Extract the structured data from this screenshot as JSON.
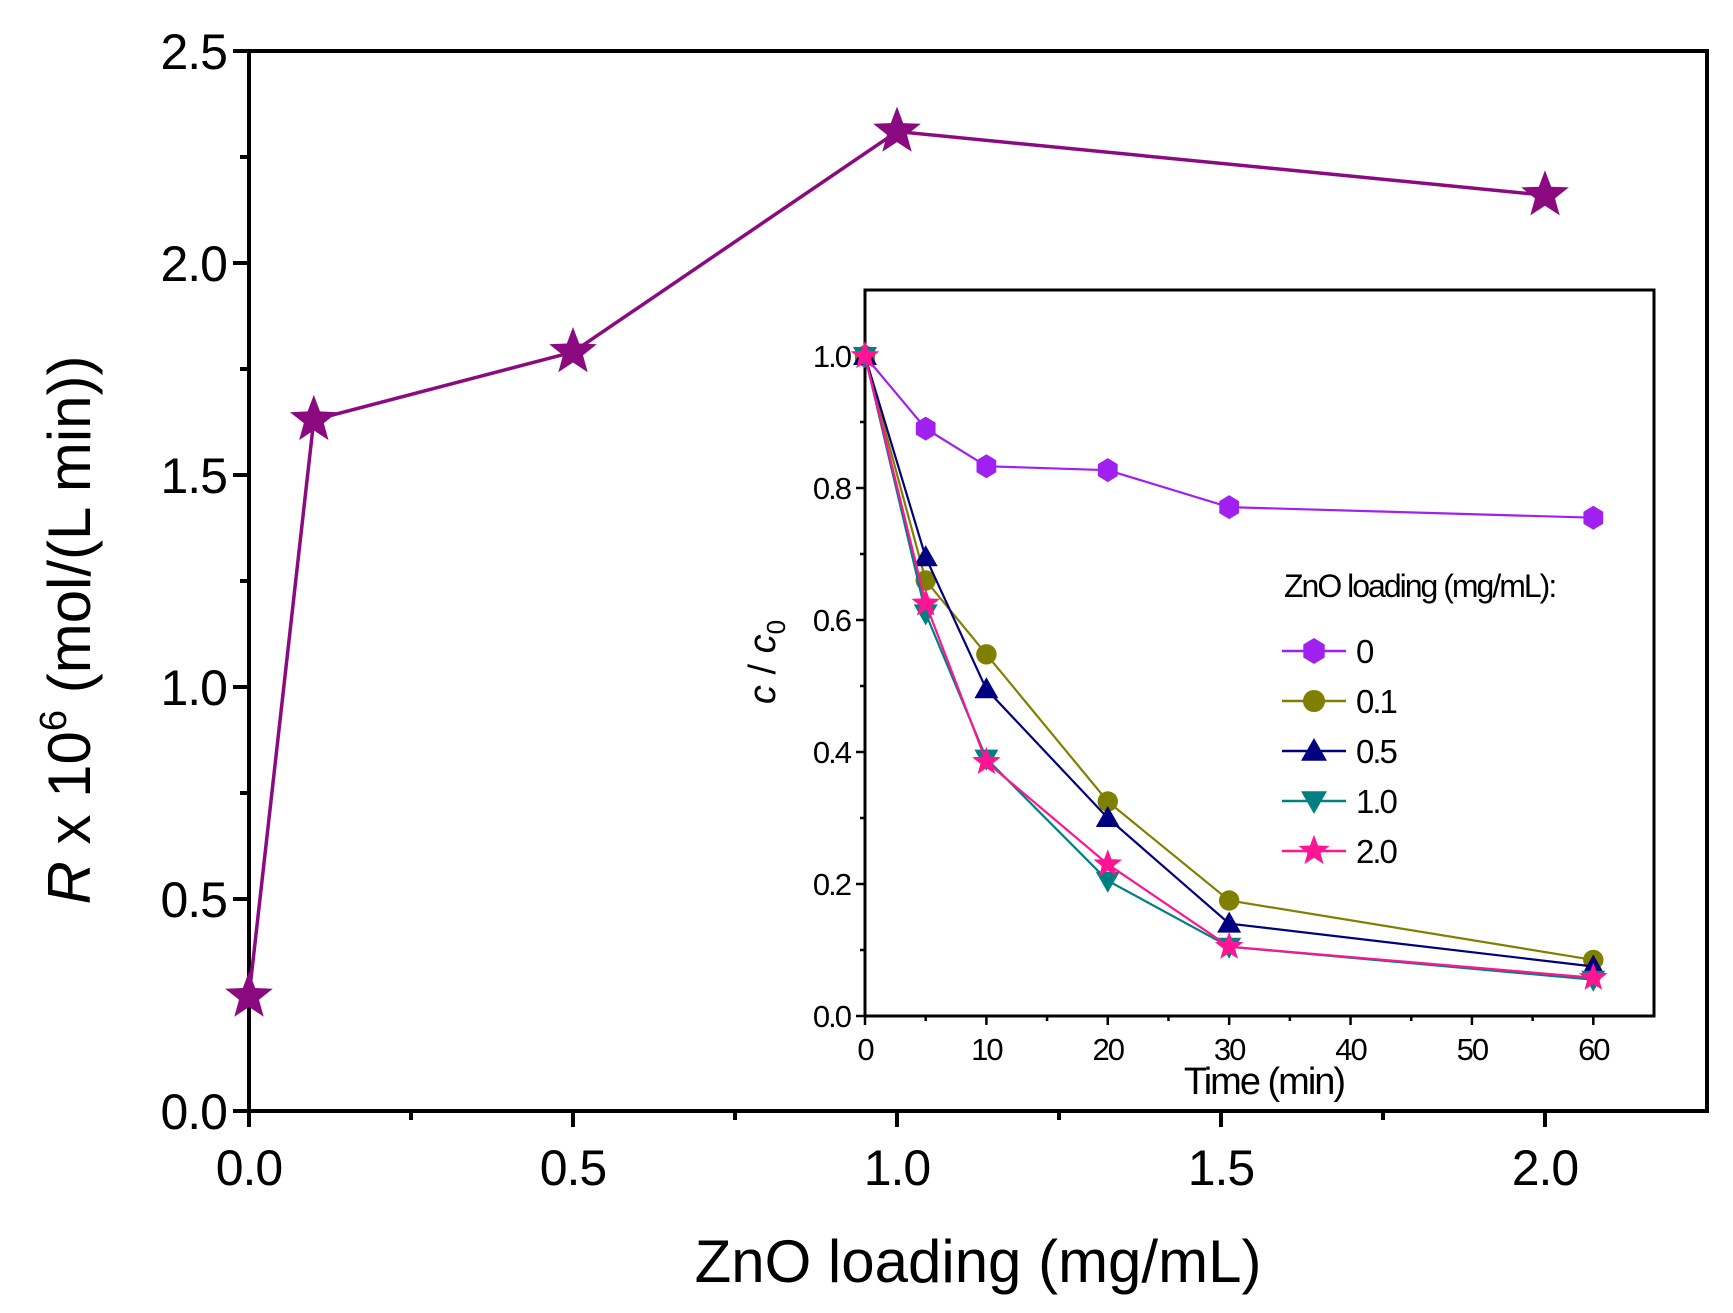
{
  "chart_data": [
    {
      "type": "line",
      "title": "",
      "xlabel": "ZnO loading (mg/mL)",
      "ylabel_parts": {
        "var": "R",
        "mid": " x 10",
        "sup": "6",
        "unit": " (mol/(L min))"
      },
      "xlim": [
        0,
        2.25
      ],
      "ylim": [
        0,
        2.5
      ],
      "xticks": [
        0.0,
        0.5,
        1.0,
        1.5,
        2.0
      ],
      "xtick_labels": [
        "0.0",
        "0.5",
        "1.0",
        "1.5",
        "2.0"
      ],
      "yticks": [
        0.0,
        0.5,
        1.0,
        1.5,
        2.0,
        2.5
      ],
      "ytick_labels": [
        "0.0",
        "0.5",
        "1.0",
        "1.5",
        "2.0",
        "2.5"
      ],
      "grid": false,
      "series": [
        {
          "name": "R",
          "marker": "star",
          "color": "#8B0A80",
          "x": [
            0,
            0.1,
            0.5,
            1.0,
            2.0
          ],
          "y": [
            0.27,
            1.63,
            1.79,
            2.31,
            2.16
          ]
        }
      ]
    },
    {
      "type": "line",
      "title": "",
      "xlabel": "Time (min)",
      "ylabel_parts": {
        "a": "c",
        "sep": " / ",
        "b": "c",
        "sub": "0"
      },
      "xlim": [
        0,
        65
      ],
      "ylim": [
        0,
        1.1
      ],
      "xticks": [
        0,
        10,
        20,
        30,
        40,
        50,
        60
      ],
      "xtick_labels": [
        "0",
        "10",
        "20",
        "30",
        "40",
        "50",
        "60"
      ],
      "yticks": [
        0.0,
        0.2,
        0.4,
        0.6,
        0.8,
        1.0
      ],
      "ytick_labels": [
        "0.0",
        "0.2",
        "0.4",
        "0.6",
        "0.8",
        "1.0"
      ],
      "grid": false,
      "legend_title": "ZnO loading (mg/mL):",
      "legend_placement": "center-right",
      "x": [
        0,
        5,
        10,
        20,
        30,
        60
      ],
      "series": [
        {
          "name": "0",
          "marker": "hexagon",
          "color": "#A020F0",
          "values": [
            1.0,
            0.89,
            0.833,
            0.827,
            0.771,
            0.755
          ]
        },
        {
          "name": "0.1",
          "marker": "circle",
          "color": "#808000",
          "values": [
            1.0,
            0.66,
            0.548,
            0.325,
            0.175,
            0.085
          ]
        },
        {
          "name": "0.5",
          "marker": "triangle-up",
          "color": "#000080",
          "values": [
            1.0,
            0.695,
            0.495,
            0.3,
            0.14,
            0.075
          ]
        },
        {
          "name": "1.0",
          "marker": "triangle-down",
          "color": "#008080",
          "values": [
            1.0,
            0.61,
            0.39,
            0.205,
            0.105,
            0.055
          ]
        },
        {
          "name": "2.0",
          "marker": "star",
          "color": "#FF1493",
          "values": [
            1.0,
            0.625,
            0.385,
            0.23,
            0.105,
            0.058
          ]
        }
      ]
    }
  ]
}
